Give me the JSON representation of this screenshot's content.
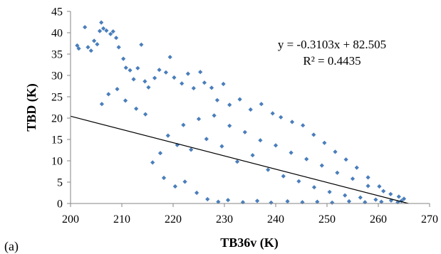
{
  "panel_label": "(a)",
  "chart_data": {
    "type": "scatter",
    "xlabel": "TB36v (K)",
    "ylabel": "TBD (K)",
    "xlim": [
      200,
      270
    ],
    "ylim": [
      0,
      45
    ],
    "x_ticks": [
      200,
      210,
      220,
      230,
      240,
      250,
      260,
      270
    ],
    "y_ticks": [
      0,
      5,
      10,
      15,
      20,
      25,
      30,
      35,
      40,
      45
    ],
    "grid": false,
    "legend": "none",
    "marker_color": "#4a7ebb",
    "trendline": {
      "slope": -0.3103,
      "intercept": 82.505,
      "color": "#000000"
    },
    "equation_text": "y = -0.3103x + 82.505",
    "r2_text": "R² = 0.4435",
    "series": [
      {
        "points": [
          [
            201.3,
            37.0
          ],
          [
            201.6,
            36.3
          ],
          [
            202.8,
            41.3
          ],
          [
            203.4,
            36.6
          ],
          [
            204.0,
            35.8
          ],
          [
            204.6,
            38.1
          ],
          [
            205.2,
            37.3
          ],
          [
            205.7,
            40.4
          ],
          [
            206.0,
            42.4
          ],
          [
            206.4,
            41.0
          ],
          [
            207.0,
            40.5
          ],
          [
            207.8,
            39.7
          ],
          [
            208.3,
            40.3
          ],
          [
            208.9,
            38.8
          ],
          [
            209.4,
            36.6
          ],
          [
            210.3,
            33.9
          ],
          [
            210.8,
            31.8
          ],
          [
            211.6,
            31.2
          ],
          [
            212.3,
            29.1
          ],
          [
            213.1,
            31.7
          ],
          [
            213.8,
            37.2
          ],
          [
            214.5,
            28.6
          ],
          [
            215.2,
            27.2
          ],
          [
            206.1,
            23.3
          ],
          [
            207.4,
            25.6
          ],
          [
            209.1,
            26.8
          ],
          [
            210.7,
            24.1
          ],
          [
            212.8,
            22.2
          ],
          [
            214.6,
            20.9
          ],
          [
            216.4,
            29.4
          ],
          [
            217.3,
            31.3
          ],
          [
            218.6,
            30.7
          ],
          [
            219.4,
            34.3
          ],
          [
            220.2,
            29.5
          ],
          [
            221.7,
            28.1
          ],
          [
            222.9,
            30.4
          ],
          [
            224.0,
            27.0
          ],
          [
            225.3,
            30.8
          ],
          [
            226.1,
            28.3
          ],
          [
            227.5,
            27.1
          ],
          [
            228.6,
            24.2
          ],
          [
            229.8,
            28.0
          ],
          [
            231.0,
            23.1
          ],
          [
            233.0,
            24.4
          ],
          [
            235.1,
            22.0
          ],
          [
            237.2,
            23.3
          ],
          [
            239.4,
            21.1
          ],
          [
            241.0,
            20.2
          ],
          [
            243.2,
            19.1
          ],
          [
            245.3,
            18.3
          ],
          [
            247.4,
            16.1
          ],
          [
            249.5,
            14.2
          ],
          [
            251.6,
            12.1
          ],
          [
            253.7,
            10.3
          ],
          [
            255.8,
            8.4
          ],
          [
            258.0,
            6.1
          ],
          [
            260.2,
            4.0
          ],
          [
            262.4,
            2.2
          ],
          [
            264.5,
            0.6
          ],
          [
            265.0,
            1.1
          ],
          [
            218.2,
            6.0
          ],
          [
            220.4,
            4.0
          ],
          [
            222.3,
            5.1
          ],
          [
            224.6,
            2.5
          ],
          [
            226.7,
            1.0
          ],
          [
            228.8,
            0.4
          ],
          [
            230.7,
            0.8
          ],
          [
            233.6,
            0.3
          ],
          [
            236.4,
            0.6
          ],
          [
            239.1,
            0.2
          ],
          [
            242.3,
            0.5
          ],
          [
            245.2,
            0.3
          ],
          [
            248.1,
            0.4
          ],
          [
            251.0,
            0.2
          ],
          [
            254.3,
            0.5
          ],
          [
            257.4,
            0.3
          ],
          [
            260.6,
            0.4
          ],
          [
            263.8,
            0.3
          ],
          [
            216.0,
            9.6
          ],
          [
            217.5,
            11.8
          ],
          [
            219.0,
            15.9
          ],
          [
            220.8,
            13.7
          ],
          [
            222.0,
            18.4
          ],
          [
            223.5,
            12.6
          ],
          [
            225.0,
            19.8
          ],
          [
            226.5,
            15.1
          ],
          [
            228.0,
            20.6
          ],
          [
            229.5,
            13.4
          ],
          [
            231.0,
            18.2
          ],
          [
            232.5,
            9.8
          ],
          [
            234.0,
            16.7
          ],
          [
            235.5,
            11.3
          ],
          [
            237.0,
            14.8
          ],
          [
            238.5,
            7.9
          ],
          [
            240.0,
            13.6
          ],
          [
            241.5,
            6.4
          ],
          [
            243.0,
            11.9
          ],
          [
            244.5,
            5.2
          ],
          [
            246.0,
            10.4
          ],
          [
            247.5,
            3.8
          ],
          [
            249.0,
            8.9
          ],
          [
            250.5,
            2.7
          ],
          [
            252.0,
            7.2
          ],
          [
            253.5,
            1.9
          ],
          [
            255.0,
            5.8
          ],
          [
            256.5,
            1.4
          ],
          [
            258.0,
            4.1
          ],
          [
            259.5,
            0.9
          ],
          [
            261.0,
            2.9
          ],
          [
            262.5,
            0.7
          ],
          [
            264.0,
            1.6
          ]
        ]
      }
    ]
  }
}
